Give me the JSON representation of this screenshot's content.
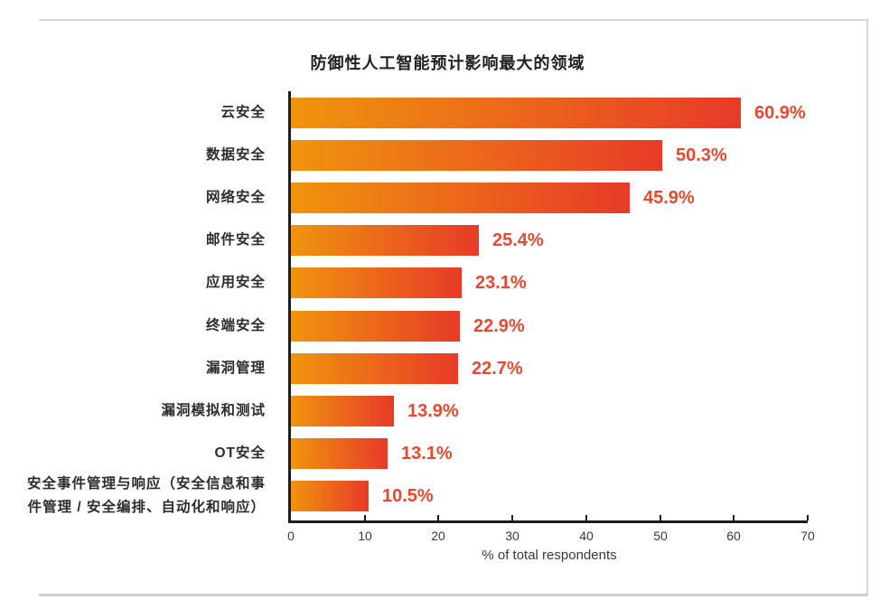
{
  "window": {
    "background": "#ffffff",
    "card_border_color": "#d7d7d7",
    "card_bottom_border_color": "#cfcfcf"
  },
  "chart_data": {
    "type": "bar",
    "orientation": "horizontal",
    "title": "防御性人工智能预计影响最大的领域",
    "categories": [
      "云安全",
      "数据安全",
      "网络安全",
      "邮件安全",
      "应用安全",
      "终端安全",
      "漏洞管理",
      "漏洞模拟和测试",
      "OT安全",
      "安全事件管理与响应（安全信息和事件管理 / 安全编排、自动化和响应）"
    ],
    "values": [
      60.9,
      50.3,
      45.9,
      25.4,
      23.1,
      22.9,
      22.7,
      13.9,
      13.1,
      10.5
    ],
    "value_labels": [
      "60.9%",
      "50.3%",
      "45.9%",
      "25.4%",
      "23.1%",
      "22.9%",
      "22.7%",
      "13.9%",
      "13.1%",
      "10.5%"
    ],
    "xlabel": "% of total respondents",
    "xlim": [
      0,
      70
    ],
    "xticks": [
      0,
      10,
      20,
      30,
      40,
      50,
      60,
      70
    ],
    "grid": false,
    "legend": null,
    "bar_gradient_start": "#F0940E",
    "bar_gradient_end": "#E73A28",
    "value_label_color": "#E9482F",
    "axis_color": "#1c1c1c",
    "category_label_color": "#2d2d2d",
    "title_color": "#212121"
  }
}
